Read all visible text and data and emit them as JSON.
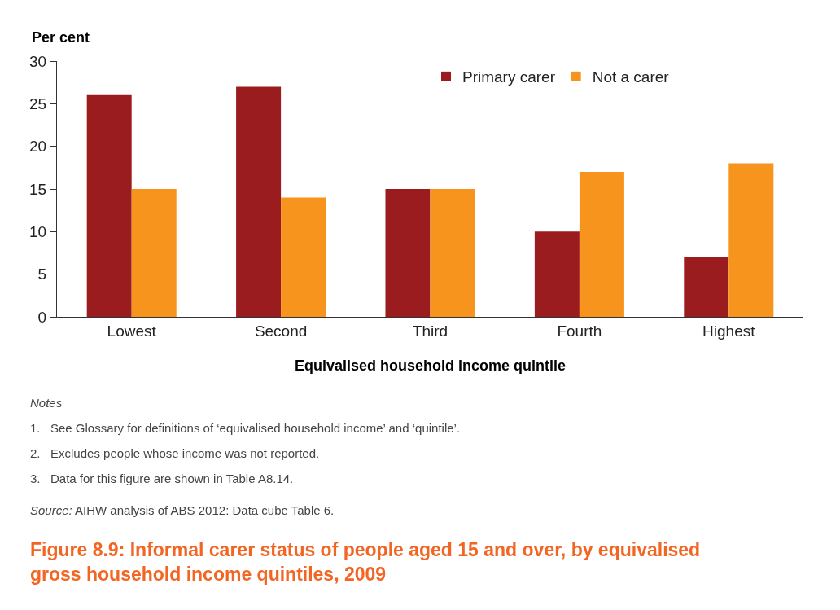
{
  "chart_data": {
    "type": "bar",
    "title": "Figure 8.9: Informal carer status of people aged 15 and over, by equivalised gross household income quintiles, 2009",
    "xlabel": "Equivalised household income quintile",
    "ylabel": "Per cent",
    "categories": [
      "Lowest",
      "Second",
      "Third",
      "Fourth",
      "Highest"
    ],
    "series": [
      {
        "name": "Primary carer",
        "color": "#9b1c1f",
        "values": [
          26,
          27,
          15,
          10,
          7
        ]
      },
      {
        "name": "Not a carer",
        "color": "#f7941d",
        "values": [
          15,
          14,
          15,
          17,
          18
        ]
      }
    ],
    "ylim": [
      0,
      30
    ],
    "yticks": [
      0,
      5,
      10,
      15,
      20,
      25,
      30
    ],
    "legend": "top right",
    "annotations": [
      "Notes",
      "1.   See Glossary for definitions of ‘equivalised household income’ and ‘quintile’.",
      "2.   Excludes people whose income was not reported.",
      "3.   Data for this figure are shown in Table A8.14.",
      "Source: AIHW analysis of ABS 2012: Data cube Table 6."
    ]
  }
}
